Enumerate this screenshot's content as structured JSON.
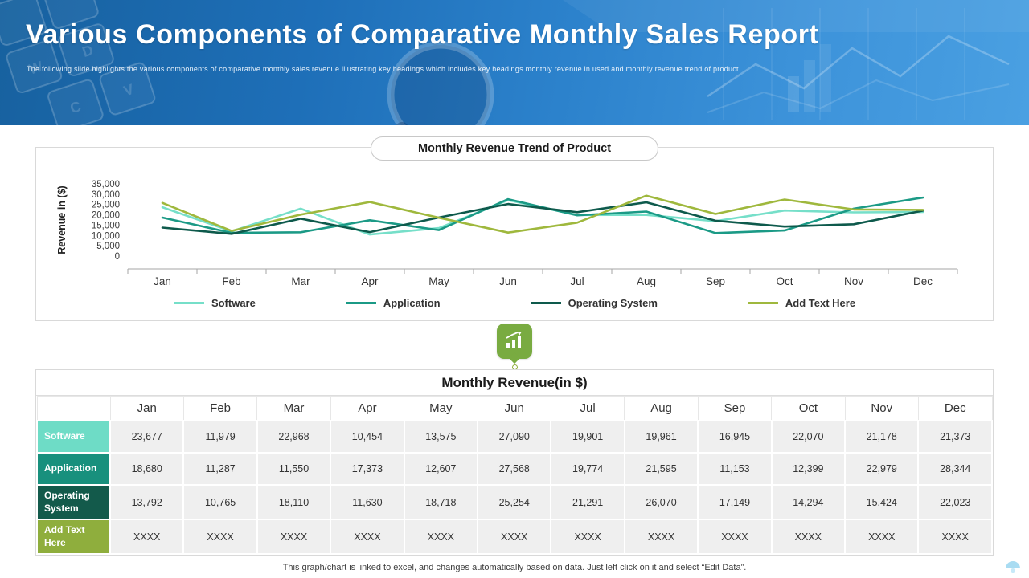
{
  "header": {
    "title": "Various Components of Comparative Monthly Sales Report",
    "subtitle": "The following slide highlights the various components of comparative monthly sales revenue illustrating key headings which includes key headings monthly revenue in used and monthly revenue trend of product"
  },
  "chart_data": {
    "type": "line",
    "title": "Monthly Revenue Trend of Product",
    "ylabel": "Revenue in ($)",
    "ylim": [
      0,
      35000
    ],
    "yticks": [
      0,
      5000,
      10000,
      15000,
      20000,
      25000,
      30000,
      35000
    ],
    "grid": false,
    "legend_position": "bottom",
    "categories": [
      "Jan",
      "Feb",
      "Mar",
      "Apr",
      "May",
      "Jun",
      "Jul",
      "Aug",
      "Sep",
      "Oct",
      "Nov",
      "Dec"
    ],
    "series": [
      {
        "name": "Software",
        "color": "#76dfc9",
        "values": [
          23677,
          11979,
          22968,
          10454,
          13575,
          27090,
          19901,
          19961,
          16945,
          22070,
          21178,
          21373
        ]
      },
      {
        "name": "Application",
        "color": "#1b9a86",
        "values": [
          18680,
          11287,
          11550,
          17373,
          12607,
          27568,
          19774,
          21595,
          11153,
          12399,
          22979,
          28344
        ]
      },
      {
        "name": "Operating System",
        "color": "#0e5a4c",
        "values": [
          13792,
          10765,
          18110,
          11630,
          18718,
          25254,
          21291,
          26070,
          17149,
          14294,
          15424,
          22023
        ]
      },
      {
        "name": "Add Text Here",
        "color": "#9fb83d",
        "values": [
          25800,
          12200,
          20100,
          26200,
          18600,
          11400,
          16200,
          29300,
          20400,
          27400,
          22600,
          22400
        ]
      }
    ]
  },
  "table": {
    "title": "Monthly Revenue(in $)",
    "columns": [
      "Jan",
      "Feb",
      "Mar",
      "Apr",
      "May",
      "Jun",
      "Jul",
      "Aug",
      "Sep",
      "Oct",
      "Nov",
      "Dec"
    ],
    "rows": [
      {
        "label": "Software",
        "color": "#6edcc6",
        "values": [
          "23,677",
          "11,979",
          "22,968",
          "10,454",
          "13,575",
          "27,090",
          "19,901",
          "19,961",
          "16,945",
          "22,070",
          "21,178",
          "21,373"
        ]
      },
      {
        "label": "Application",
        "color": "#18907d",
        "values": [
          "18,680",
          "11,287",
          "11,550",
          "17,373",
          "12,607",
          "27,568",
          "19,774",
          "21,595",
          "11,153",
          "12,399",
          "22,979",
          "28,344"
        ]
      },
      {
        "label": "Operating System",
        "color": "#135a4b",
        "values": [
          "13,792",
          "10,765",
          "18,110",
          "11,630",
          "18,718",
          "25,254",
          "21,291",
          "26,070",
          "17,149",
          "14,294",
          "15,424",
          "22,023"
        ]
      },
      {
        "label": "Add Text Here",
        "color": "#8fae3d",
        "values": [
          "XXXX",
          "XXXX",
          "XXXX",
          "XXXX",
          "XXXX",
          "XXXX",
          "XXXX",
          "XXXX",
          "XXXX",
          "XXXX",
          "XXXX",
          "XXXX"
        ]
      }
    ]
  },
  "footer": {
    "note": "This graph/chart is linked to excel, and changes automatically based on data. Just left click on it and select “Edit Data”."
  }
}
